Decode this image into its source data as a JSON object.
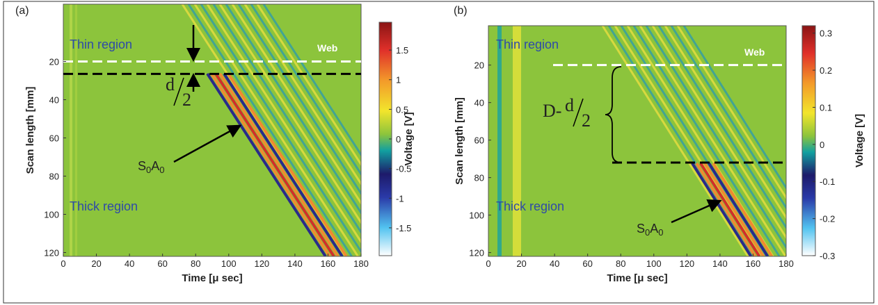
{
  "chart_data": [
    {
      "type": "heatmap",
      "panel_label": "(a)",
      "x_label": "Time [μ sec]",
      "y_label": "Scan length [mm]",
      "colorbar_label": "Voltage [V]",
      "xlim": [
        0,
        180
      ],
      "xticks": [
        0,
        20,
        40,
        60,
        80,
        100,
        120,
        140,
        160,
        180
      ],
      "ylim": [
        -10,
        122
      ],
      "yticks": [
        20,
        40,
        60,
        80,
        100,
        120
      ],
      "colorbar_lim": [
        -1.97,
        1.97
      ],
      "colorbar_ticks": [
        -1.5,
        -1,
        -0.5,
        0,
        0.5,
        1,
        1.5
      ],
      "hlines": [
        {
          "value": 20,
          "color": "#ffffff"
        },
        {
          "value": 26.5,
          "color": "#000000"
        }
      ],
      "region_labels": [
        "Thin region",
        "Thick region"
      ],
      "web_label": "Web",
      "mode_label": [
        "S",
        "0",
        "A",
        "0"
      ],
      "thickness_label": {
        "numerator": "d",
        "denominator": "2"
      }
    },
    {
      "type": "heatmap",
      "panel_label": "(b)",
      "x_label": "Time [μ sec]",
      "y_label": "Scan length [mm]",
      "colorbar_label": "Voltage [V]",
      "xlim": [
        0,
        180
      ],
      "xticks": [
        0,
        20,
        40,
        60,
        80,
        100,
        120,
        140,
        160,
        180
      ],
      "ylim": [
        -1,
        122
      ],
      "yticks": [
        20,
        40,
        60,
        80,
        100,
        120
      ],
      "colorbar_lim": [
        -0.3,
        0.32
      ],
      "colorbar_ticks": [
        -0.3,
        -0.2,
        -0.1,
        0,
        0.1,
        0.2,
        0.3
      ],
      "hlines": [
        {
          "value": 20,
          "color": "#ffffff"
        },
        {
          "value": 72,
          "color": "#000000"
        }
      ],
      "region_labels": [
        "Thin region",
        "Thick region"
      ],
      "web_label": "Web",
      "mode_label": [
        "S",
        "0",
        "A",
        "0"
      ],
      "thickness_label": {
        "prefix": "D-",
        "numerator": "d",
        "denominator": "2"
      }
    }
  ]
}
